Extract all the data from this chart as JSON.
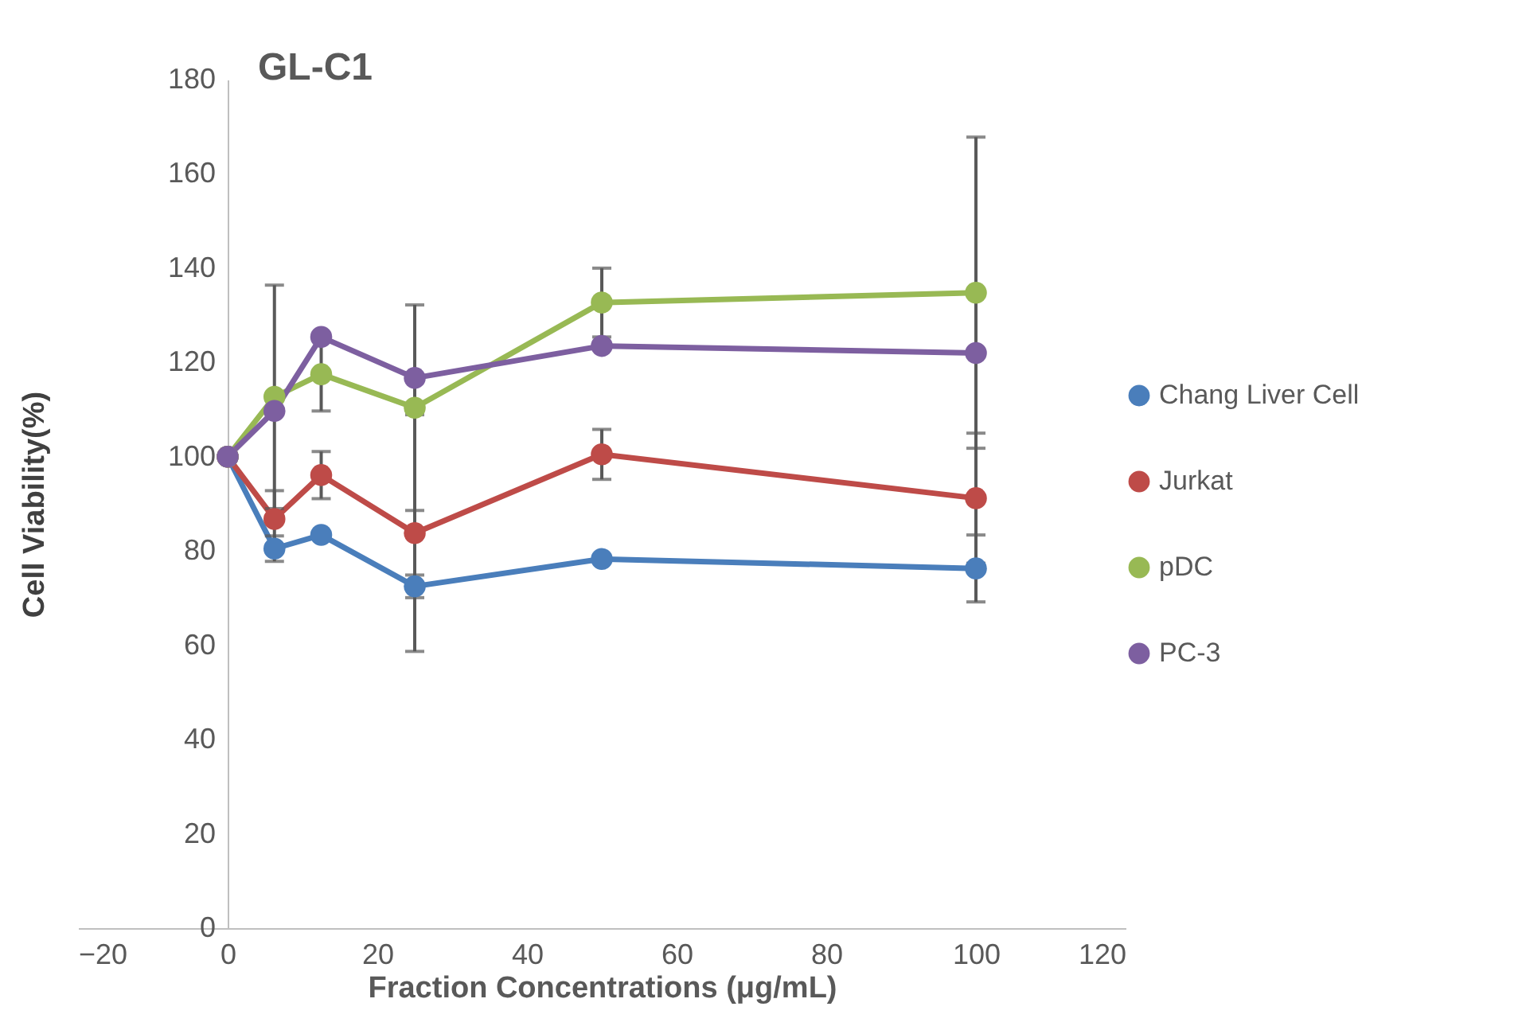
{
  "chart_data": {
    "type": "line",
    "title": "GL-C1",
    "xlabel": "Fraction Concentrations (μg/mL)",
    "ylabel": "Cell Viability(%)",
    "x": [
      0,
      6.25,
      12.5,
      25,
      50,
      100
    ],
    "series": [
      {
        "name": "Chang  Liver Cell",
        "color": "#4a7ebb",
        "values": [
          100,
          80.5,
          83.4,
          72.5,
          78.3,
          76.3
        ],
        "errors": [
          null,
          2.7,
          null,
          2.4,
          null,
          7.1
        ]
      },
      {
        "name": "Jurkat",
        "color": "#be4b48",
        "values": [
          100,
          86.8,
          96.1,
          83.8,
          100.5,
          91.2
        ],
        "errors": [
          null,
          6,
          5,
          25.1,
          5.3,
          13.8
        ]
      },
      {
        "name": "pDC",
        "color": "#98b954",
        "values": [
          100,
          112.7,
          117.5,
          110.4,
          132.7,
          134.8
        ],
        "errors": [
          null,
          23.7,
          7.8,
          21.8,
          7.3,
          33
        ]
      },
      {
        "name": "PC-3",
        "color": "#7d5fa0",
        "values": [
          100,
          109.7,
          125.4,
          116.7,
          123.5,
          122
        ]
      }
    ],
    "xlim": [
      -20,
      120
    ],
    "xticks": [
      -20,
      0,
      20,
      40,
      60,
      80,
      100,
      120
    ],
    "ylim": [
      0,
      180
    ],
    "yticks": [
      0,
      20,
      40,
      60,
      80,
      100,
      120,
      140,
      160,
      180
    ],
    "grid": false,
    "legend": "right",
    "marker": "circle",
    "line_style": "solid"
  }
}
